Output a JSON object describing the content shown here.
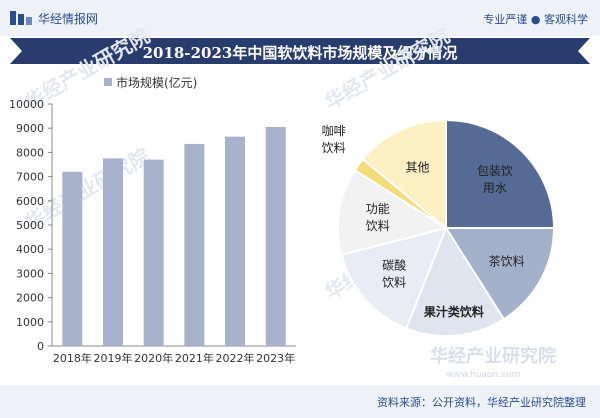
{
  "header": {
    "brand": "华经情报网",
    "tagline": "专业严谨 ● 客观科学"
  },
  "title": "2018-2023年中国软饮料市场规模及细分情况",
  "footer": {
    "source": "资料来源：公开资料，华经产业研究院整理"
  },
  "watermark": {
    "name": "华经产业研究院",
    "url": "www.huaon.com"
  },
  "colors": {
    "bar": "#a8b2cc",
    "header_bg": "#eef2f8",
    "title_band": "#283c6e",
    "accent_text": "#2b4d8c"
  },
  "chart_data": [
    {
      "type": "bar",
      "legend": "市场规模(亿元)",
      "legend_position": "top-left",
      "categories": [
        "2018年",
        "2019年",
        "2020年",
        "2021年",
        "2022年",
        "2023年"
      ],
      "values": [
        7200,
        7750,
        7700,
        8350,
        8650,
        9050
      ],
      "ylim": [
        0,
        10000
      ],
      "yticks": [
        0,
        1000,
        2000,
        3000,
        4000,
        5000,
        6000,
        7000,
        8000,
        9000,
        10000
      ],
      "grid": false
    },
    {
      "type": "pie",
      "slices": [
        {
          "label": "包装饮用水",
          "value": 25,
          "color": "#556a94"
        },
        {
          "label": "茶饮料",
          "value": 16,
          "color": "#a4b1cb"
        },
        {
          "label": "果汁类饮料",
          "value": 15,
          "color": "#dfe4ef"
        },
        {
          "label": "碳酸饮料",
          "value": 15,
          "color": "#e9ecf4"
        },
        {
          "label": "功能饮料",
          "value": 13,
          "color": "#f2f2f2"
        },
        {
          "label": "咖啡饮料",
          "value": 2,
          "color": "#f5dc7a"
        },
        {
          "label": "其他",
          "value": 14,
          "color": "#fcefc2"
        }
      ]
    }
  ]
}
